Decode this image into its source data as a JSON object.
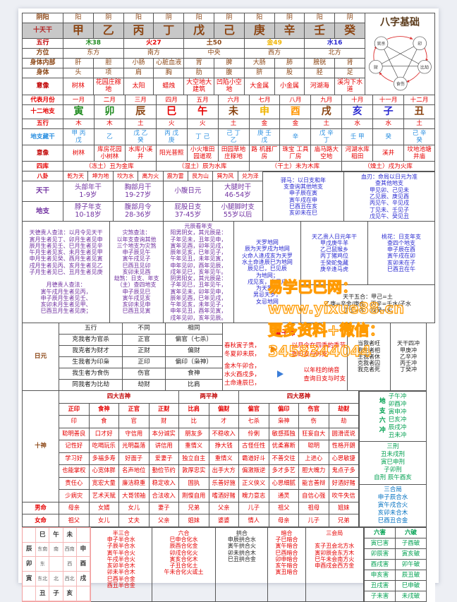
{
  "title": "八字基础",
  "pentagram": {
    "nodes": [
      "官杀",
      "印",
      "比劫",
      "食伤",
      "财"
    ]
  },
  "watermark": {
    "line1": "易学巴巴网：www.yixue88.cn",
    "line2": "更多资料+微信：3458344044",
    "color": "#ff9a00"
  },
  "stems_table": {
    "cells": [
      {
        "t": "阴阳",
        "c": "lb br"
      },
      "阳",
      "阴",
      "阳",
      "阴",
      "阳",
      "阴",
      "阳",
      "阴",
      "阳",
      "阴",
      {
        "t": "十天干",
        "c": "lb hd"
      },
      {
        "t": "甲",
        "c": "stem"
      },
      {
        "t": "乙",
        "c": "stem"
      },
      {
        "t": "丙",
        "c": "stem"
      },
      {
        "t": "丁",
        "c": "stem"
      },
      {
        "t": "戊",
        "c": "stem"
      },
      {
        "t": "己",
        "c": "stem"
      },
      {
        "t": "庚",
        "c": "stem"
      },
      {
        "t": "辛",
        "c": "stem"
      },
      {
        "t": "壬",
        "c": "stem"
      },
      {
        "t": "癸",
        "c": "stem"
      },
      {
        "t": "五行",
        "c": "lb dr"
      },
      {
        "t": "木38",
        "c": "g bold",
        "s": 2
      },
      {
        "t": "火27",
        "c": "r bold",
        "s": 2
      },
      {
        "t": "土50",
        "c": "br bold",
        "s": 2
      },
      {
        "t": "金49",
        "c": "gd bold",
        "s": 2
      },
      {
        "t": "水16",
        "c": "bl bold",
        "s": 2
      },
      {
        "t": "方位",
        "c": "lb br"
      },
      {
        "t": "东方",
        "s": 2
      },
      {
        "t": "南方",
        "s": 2
      },
      {
        "t": "中央",
        "s": 2
      },
      {
        "t": "西方",
        "s": 2
      },
      {
        "t": "北方",
        "s": 2
      },
      {
        "t": "身体内部",
        "c": "lb br"
      },
      "肝",
      "胆",
      "小肠",
      "心脏血液",
      "胃",
      "脾",
      "大肠",
      "肺",
      "膀胱",
      "肾",
      {
        "t": "身体",
        "c": "lb br"
      },
      "头",
      "项",
      "肩",
      "胸",
      "肋",
      "腹",
      "脐",
      "股",
      "胫",
      "足",
      {
        "t": "意像",
        "c": "lb dr"
      },
      {
        "t": "树林",
        "c": "r"
      },
      {
        "t": "花园庄稼地",
        "c": "r"
      },
      {
        "t": "太阳",
        "c": "r"
      },
      {
        "t": "蜡烛",
        "c": "r"
      },
      {
        "t": "大空地大建筑",
        "c": "r"
      },
      {
        "t": "凹陷小空地",
        "c": "r"
      },
      {
        "t": "大金属",
        "c": "r"
      },
      {
        "t": "小金属",
        "c": "r"
      },
      {
        "t": "河湖海",
        "c": "r"
      },
      {
        "t": "溪沟下水道",
        "c": "r"
      }
    ]
  },
  "branches_table": {
    "cells": [
      {
        "t": "代表月份",
        "c": "lb r"
      },
      "一月",
      "二月",
      "三月",
      "四月",
      "五月",
      "六月",
      "七月",
      "八月",
      "九月",
      "十月",
      "十一月",
      "十二月",
      {
        "t": "十二地支",
        "c": "lb r"
      },
      {
        "t": "寅",
        "c": "bz g"
      },
      {
        "t": "卯",
        "c": "bz g"
      },
      {
        "t": "辰",
        "c": "bz br"
      },
      {
        "t": "巳",
        "c": "bz r"
      },
      {
        "t": "午",
        "c": "bz r"
      },
      {
        "t": "未",
        "c": "bz br"
      },
      {
        "t": "申",
        "c": "bz gd"
      },
      {
        "t": "酉",
        "c": "bz og"
      },
      {
        "t": "戌",
        "c": "bz br"
      },
      {
        "t": "亥",
        "c": "bz bl"
      },
      {
        "t": "子",
        "c": "bz bl"
      },
      {
        "t": "丑",
        "c": "bz br"
      },
      {
        "t": "五行",
        "c": "lb r"
      },
      "木",
      "木",
      "土",
      "火",
      "火",
      "土",
      "金",
      "金",
      "土",
      "水",
      "水",
      "土",
      {
        "t": "地支藏干",
        "c": "lb b"
      },
      {
        "t": "甲 丙\n戊",
        "c": "b"
      },
      {
        "t": "乙",
        "c": "b"
      },
      {
        "t": "戊 乙\n癸",
        "c": "b"
      },
      {
        "t": "丙 戊\n庚",
        "c": "b"
      },
      {
        "t": "丁 己",
        "c": "b"
      },
      {
        "t": "己 丁\n乙",
        "c": "b"
      },
      {
        "t": "庚 壬\n戊",
        "c": "b"
      },
      {
        "t": "辛",
        "c": "b"
      },
      {
        "t": "戊 辛\n丁",
        "c": "b"
      },
      {
        "t": "壬 甲",
        "c": "b"
      },
      {
        "t": "癸",
        "c": "b"
      },
      {
        "t": "己 辛\n癸",
        "c": "b"
      },
      {
        "t": "意像",
        "c": "lb dr"
      },
      "树林",
      "库房花园小树林",
      "水库小溪井",
      "阳光普照",
      "小火堆田园道观",
      "田园草地庄稼地",
      "路 机器厂房",
      "珠宝 工具厂房",
      "庙马路大空地",
      "河湖水库稻田",
      "溪井",
      "坟地池塘 井庙",
      {
        "t": "四库",
        "c": "lb r"
      },
      {
        "t": "（冻土）丑为金库",
        "s": 3
      },
      {
        "t": "（湿土）辰为水库",
        "s": 3
      },
      {
        "t": "（干土）未为木库",
        "s": 3
      },
      {
        "t": "（燥土）戌为火库",
        "s": 3
      }
    ]
  },
  "bagua_row": {
    "cells": [
      {
        "t": "八卦",
        "c": "lb r"
      },
      "乾为天",
      "坤为地",
      "坎为水",
      "离为火",
      "震为雷",
      "艮为山",
      "巽为风",
      "兑为泽"
    ]
  },
  "tiangan_row": {
    "cells": [
      {
        "t": "天干",
        "c": "lb pu"
      },
      "头部年干\n1-9岁",
      "胸部月干\n19-27岁",
      "小腹日元",
      "大腿时干\n46-54岁"
    ]
  },
  "dizhi_row": {
    "cells": [
      {
        "t": "地支",
        "c": "lb pu"
      },
      "脖子年支\n10-18岁",
      "腹部月令\n28-36岁",
      "屁股日支\n37-45岁",
      "小腿脚时支\n55岁以后"
    ]
  },
  "texts": {
    "yima": "驿马：以日支和年\n支查询其他地支\n申子辰在寅\n寅午戌在申\n巳酉丑在亥\n亥卯未在巳",
    "xueren": "血刃：命局以日元为准\n查其他地支\n甲见卯、己见未\n乙见辰、庚见酉\n丙见午、辛见戌\n丁见未、壬见子\n戊见午、癸见丑",
    "tiande": "天德贵人查法：以月令见天干\n寅月生者见丁、卯月生者见申\n辰月生者见壬、巳月生者见辛\n午月生者见亥、未月生者见甲\n申月生者见癸、酉月生者见寅\n戌月生者见丙、亥月生者见乙\n子月生者见巳、丑月生者见庚\n\n月德贵人查法：\n寅午戌月生者见丙，\n申子辰月生者见壬、\n亥卯未月生者见甲、\n巳酉丑月生者见庚；",
    "zaisha": "灾煞查法：\n以年支查询其他\n三个地支为灾煞\n申子辰见午\n寅午戌见子\n巳酉丑见卯\n亥卯未见酉\n劫煞：日支、年支\n（主）查四地支\n申子辰见巳\n寅午戌见亥\n亥卯未见申\n巳酉丑见寅",
    "yuanchen": "元辰看年支\n阳男阴女，其元辰是：\n子年见未，丑年见申，\n寅年见酉，卯年见戌，\n辰年见亥，巳年见子，\n午年见丑，未年见寅，\n申年见卯，酉年见辰，\n戌年见巳，亥年见午。\n阴男阳女，其元辰是：\n子年见巳，丑年见午，\n寅年见未，卯年见申，\n辰年见酉，巳年见戌，\n午年见亥，未年见子，\n申年见丑，酉年见寅，\n戌年见卯，亥年见辰。",
    "tianluo": "天罗地网\n辰为天罗戌为地网\n火命人逢戌亥为天罗\n水土命逢辰巳为地网\n辰见巳，巳见辰\n为地网；\n戌见亥，亥见戌\n为天罗；\n男忌天罗，\n女忌地网",
    "tianyi": "天乙贵人日元年干\n甲戊庚牛羊\n乙己鼠猴乡\n丙丁猪鸡位\n壬癸蛇兔藏\n庚辛逢马虎",
    "taohua": "桃花：日支年支\n查四个地支\n申子辰在酉\n寅午戌在卯\n亥卯未在子\n巳酉丑在午",
    "wuhe": "天干五合：甲己=土\n乙庚=辛金/庚金　丙辛=壬水/子水\n丁壬=木　戊癸=火",
    "wangxiang": "当我者旺\n我生者相\n生我者休\n克我者囚\n我克者死",
    "tianganchong": "天干四冲\n甲庚冲\n乙辛冲\n丙壬冲\n丁癸冲"
  },
  "tongzi": {
    "title": "童子命",
    "g1_left": "春秋寅子贵，\n冬夏卯未辰，",
    "g1_right": "以月令在四季的季节\n查日支与时支",
    "g2_left": "金木午卯合，\n水火酉戌多，\n土命逢辰巳，",
    "g2_right": "以年柱的纳音\n查询日支与时支"
  },
  "riyuan": {
    "cells": [
      {
        "t": "日元",
        "c": "lb br",
        "rs": 6
      },
      "五行",
      "不同",
      "相同",
      "克我者为官杀",
      "正官",
      "偏官（七杀）",
      "我克者为财才",
      "正财",
      "偏财",
      "生我者为印枭",
      "正印",
      "偏印（枭神）",
      "我生者为食伤",
      "伤官",
      "食神",
      "同我者为比劫",
      "劫财",
      "比肩"
    ]
  },
  "shishen": {
    "cells": [
      {
        "t": "十神",
        "c": "lb br",
        "rs": 9
      },
      {
        "t": "四大吉神",
        "c": "lb dr",
        "s": 4
      },
      {
        "t": "两平神",
        "c": "lb dr",
        "s": 2
      },
      {
        "t": "四大恶神",
        "c": "lb dr",
        "s": 4
      },
      {
        "t": "正印",
        "c": "r nm"
      },
      {
        "t": "食神",
        "c": "r nm"
      },
      {
        "t": "正官",
        "c": "r nm"
      },
      {
        "t": "正财",
        "c": "r nm"
      },
      {
        "t": "比肩",
        "c": "r nm"
      },
      {
        "t": "偏财",
        "c": "r nm"
      },
      {
        "t": "偏官",
        "c": "r nm"
      },
      {
        "t": "偏印",
        "c": "r nm"
      },
      {
        "t": "伤官",
        "c": "r nm"
      },
      {
        "t": "劫财",
        "c": "r nm"
      },
      "印",
      "食",
      "官",
      "财",
      "比",
      "才",
      "七杀",
      "枭神",
      "伤",
      "劫",
      "聪明善良",
      "口才好",
      "守信用",
      "本分诚实",
      "朋友多",
      "不稳收入",
      "伶俐",
      "敏感孤独",
      "狂妄自大",
      "圆滑谎说",
      "记性好",
      "吃喝玩乐",
      "光明磊落",
      "讲信用",
      "重情义",
      "挣大钱",
      "古怪任性",
      "优柔寡断",
      "聪明",
      "性格开朗",
      "学习好",
      "多福多寿",
      "好面子",
      "爱妻子",
      "独立自主",
      "重情义",
      "霸道好斗",
      "不善交往",
      "上进心",
      "心思敏捷",
      "也能掌权",
      "心宽体胖",
      "名声地位",
      "勤俭节约",
      "敦厚忠实",
      "出手大方",
      "偏激叛逆",
      "多才多艺",
      "胆大魄力",
      "鬼点子多",
      "责任心",
      "宽宏大量",
      "廉洁稳重",
      "稳定收入",
      "固执",
      "乐善好施",
      "正义侠义",
      "心思细腻",
      "能言善辩",
      "好酒好赌",
      "少病灾",
      "艺术天赋",
      "大哥领袖",
      "合法收入",
      "刚愎自用",
      "嗜酒好赌",
      "魄力意志",
      "通灵",
      "自信心强",
      "吹牛失信",
      {
        "t": "男命",
        "c": "lb r"
      },
      "母亲",
      "女婿",
      "女儿",
      "妻子",
      "兄弟",
      "父亲",
      "儿子",
      "祖父",
      "祖母",
      "姐妹",
      {
        "t": "女命",
        "c": "lb r"
      },
      "祖父",
      "女儿",
      "丈夫",
      "父亲",
      "姐妹",
      "婆婆",
      "情人",
      "母亲",
      "儿子",
      "兄弟"
    ]
  },
  "liuchong": {
    "label_v": "地\n支\n六\n冲",
    "list": "子午冲\n卯酉冲\n寅申冲\n巳亥冲\n辰戌冲\n丑未冲"
  },
  "sanxing": "三刑\n丑未戌刑\n寅巳申刑\n子卯刑\n自刑 辰午酉亥",
  "sanheju": "三合局\n申子辰合水\n寅午戌合火\n亥卯未合木\n巳酉丑合金",
  "bottom": {
    "diagram": {
      "cells": [
        {
          "t": "",
          "c": "de"
        },
        {
          "t": "巳",
          "c": "dg"
        },
        {
          "t": "午",
          "c": "dg"
        },
        {
          "t": "未",
          "c": "dg"
        },
        {
          "t": "",
          "c": "de"
        },
        {
          "t": "辰",
          "c": "dg"
        },
        "东南",
        "南",
        "西南",
        {
          "t": "申",
          "c": "dg"
        },
        {
          "t": "卯",
          "c": "dg"
        },
        "东",
        "",
        "西",
        {
          "t": "酉",
          "c": "dg"
        },
        {
          "t": "寅",
          "c": "dg"
        },
        "东北",
        "北",
        "西北",
        {
          "t": "戌",
          "c": "dg"
        },
        {
          "t": "",
          "c": "de"
        },
        {
          "t": "丑",
          "c": "dg"
        },
        {
          "t": "子",
          "c": "dg"
        },
        {
          "t": "亥",
          "c": "dg"
        },
        {
          "t": "",
          "c": "de"
        }
      ]
    },
    "banhe": "半三合\n申子半合水\n子辰半合水\n寅午半合火\n午戌半合火\n亥卯半合木\n卯未半合木\n巳酉半合金\n酉丑半合金",
    "liuhe": "六合\n巳申合化水\n辰酉合化金\n卯戌合化火\n寅亥合化木\n子丑合化土\n午未合化火或土",
    "gonghe": "拱合\n申辰拱合水\n寅午拱合火\n卯未拱合木\n巳丑拱合金",
    "anhe": "暗合\n子巳暗合\n寅午暗合\n巳酉暗合\n卯申暗合\n亥午暗合\n寅丑暗合",
    "sanhui": "三会局\n\n亥子丑会北方水\n寅卯辰会东方木\n巳午未会南方火\n申酉戌会西方金",
    "liuhai_table": {
      "cells": [
        {
          "t": "六害",
          "c": "gr lb"
        },
        {
          "t": "六破",
          "c": "gr lb"
        },
        "寅巳害",
        "子酉破",
        "卯辰害",
        "寅亥破",
        "酉戌害",
        "卯午破",
        "申亥害",
        "辰丑破",
        "丑戌害",
        "巳申破",
        "子未害",
        "未戌破"
      ]
    }
  }
}
